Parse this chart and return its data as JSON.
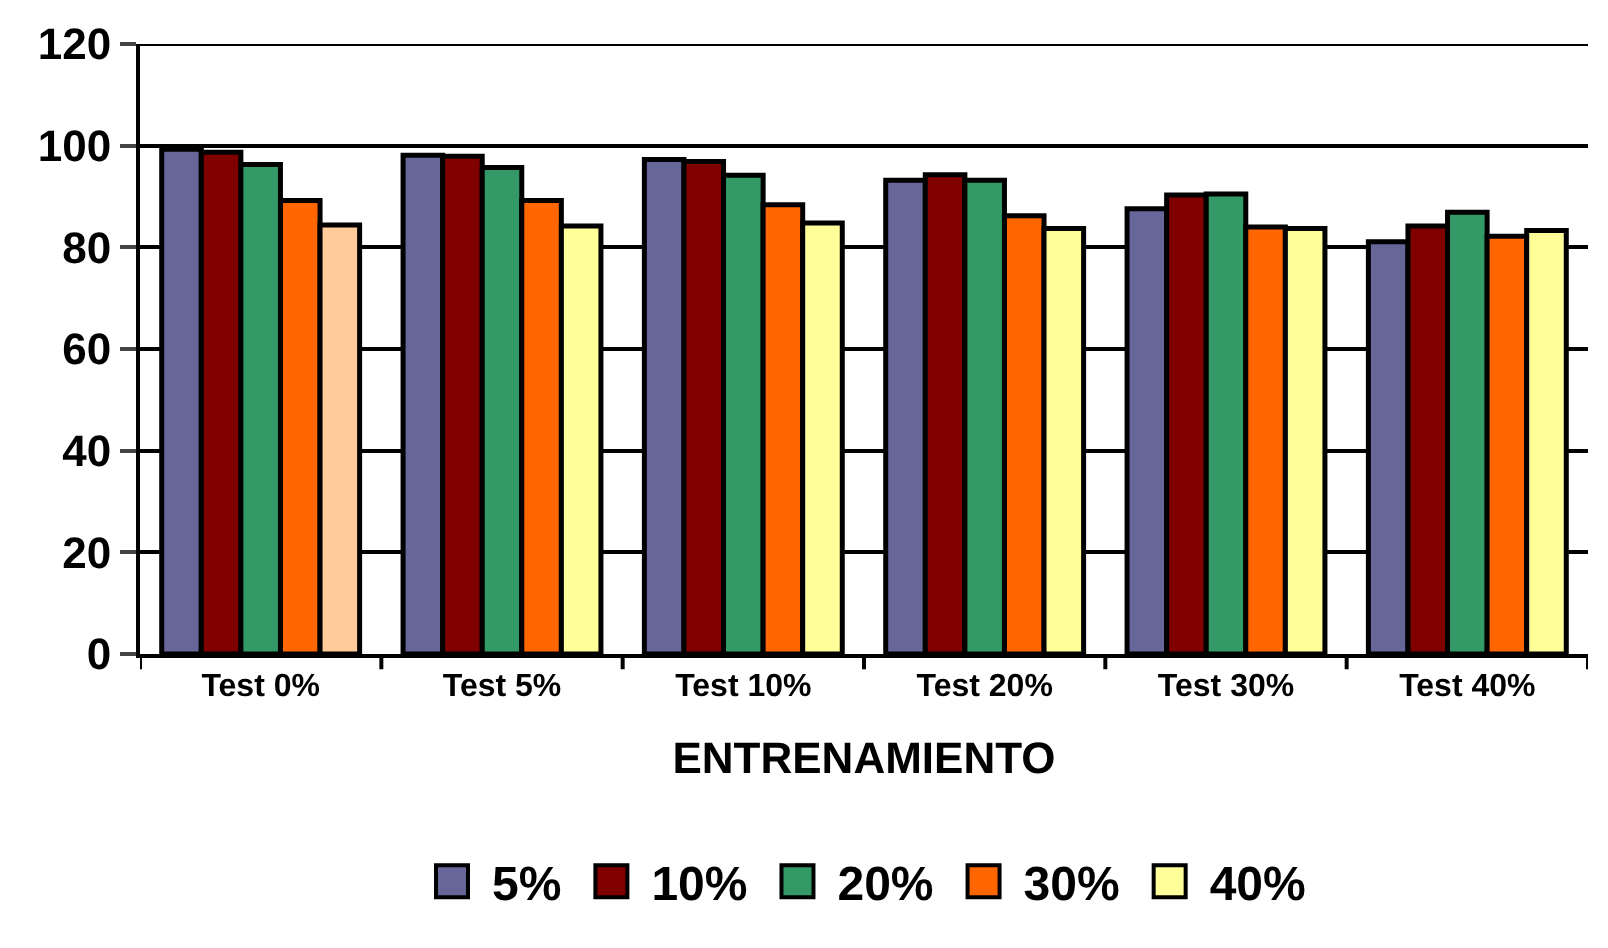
{
  "chart_data": {
    "type": "bar",
    "xlabel": "ENTRENAMIENTO",
    "categories": [
      "Test 0%",
      "Test 5%",
      "Test 10%",
      "Test 20%",
      "Test 30%",
      "Test 40%"
    ],
    "series": [
      {
        "name": "5%",
        "color": "#666699",
        "values": [
          99.3,
          98.1,
          97.3,
          93.2,
          87.6,
          81.1
        ]
      },
      {
        "name": "10%",
        "color": "#800000",
        "values": [
          98.7,
          97.9,
          96.9,
          94.3,
          90.3,
          84.2
        ]
      },
      {
        "name": "20%",
        "color": "#339966",
        "values": [
          96.3,
          95.7,
          94.2,
          93.2,
          90.5,
          86.9
        ]
      },
      {
        "name": "30%",
        "color": "#ff6600",
        "values": [
          89.2,
          89.2,
          88.4,
          86.2,
          84.0,
          82.2
        ]
      },
      {
        "name": "40%",
        "color": "#ffff99",
        "colors": [
          "#ffcc99",
          "#ffff99",
          "#ffff99",
          "#ffff99",
          "#ffff99",
          "#ffff99"
        ],
        "values": [
          84.4,
          84.2,
          84.8,
          83.7,
          83.7,
          83.3
        ]
      }
    ],
    "ylim": [
      0,
      120
    ],
    "yticks": [
      0,
      20,
      40,
      60,
      80,
      100,
      120
    ],
    "grid": "y",
    "legend": "bottom"
  }
}
